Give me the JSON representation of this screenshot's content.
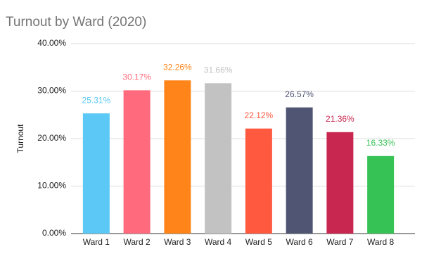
{
  "chart_data": {
    "type": "bar",
    "title": "Turnout by Ward (2020)",
    "y_label": "Turnout",
    "categories": [
      "Ward 1",
      "Ward 2",
      "Ward 3",
      "Ward 4",
      "Ward 5",
      "Ward 6",
      "Ward 7",
      "Ward 8"
    ],
    "values": [
      25.31,
      30.17,
      32.26,
      31.66,
      22.12,
      26.57,
      21.36,
      16.33
    ],
    "value_labels": [
      "25.31%",
      "30.17%",
      "32.26%",
      "31.66%",
      "22.12%",
      "26.57%",
      "21.36%",
      "16.33%"
    ],
    "colors": [
      "#5bc8f5",
      "#ff6a7c",
      "#ff851b",
      "#c2c2c2",
      "#ff5a40",
      "#4f5572",
      "#c8284f",
      "#37c256"
    ],
    "ylim": [
      0,
      40
    ],
    "yticks": [
      {
        "value": 0,
        "label": "0.00%"
      },
      {
        "value": 10,
        "label": "10.00%"
      },
      {
        "value": 20,
        "label": "20.00%"
      },
      {
        "value": 30,
        "label": "30.00%"
      },
      {
        "value": 40,
        "label": "40.00%"
      }
    ],
    "grid": true
  }
}
